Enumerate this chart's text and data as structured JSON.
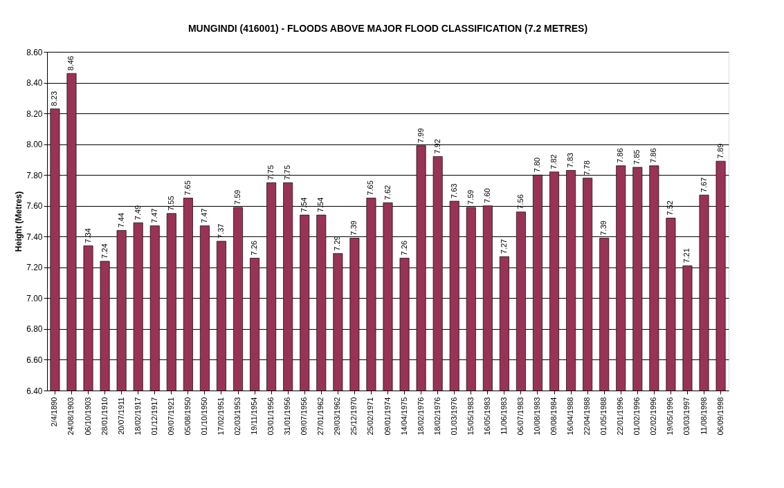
{
  "chart_data": {
    "type": "bar",
    "title": "MUNGINDI (416001) - FLOODS ABOVE MAJOR FLOOD CLASSIFICATION (7.2 METRES)",
    "ylabel": "Height (Metres)",
    "categories": [
      "2/4/1890",
      "24/08/1903",
      "06/10/1903",
      "28/01/1910",
      "20/07/1911",
      "18/02/1917",
      "01/12/1917",
      "09/07/1921",
      "05/08/1950",
      "01/10/1950",
      "17/02/1951",
      "02/03/1953",
      "19/11/1954",
      "03/01/1956",
      "31/01/1956",
      "09/07/1956",
      "27/01/1962",
      "29/03/1962",
      "25/12/1970",
      "25/02/1971",
      "09/01/1974",
      "14/04/1975",
      "18/02/1976",
      "18/02/1976",
      "01/03/1976",
      "15/05/1983",
      "16/05/1983",
      "11/06/1983",
      "06/07/1983",
      "10/08/1983",
      "09/08/1984",
      "16/04/1988",
      "22/04/1988",
      "01/05/1988",
      "22/01/1996",
      "01/02/1996",
      "02/02/1996",
      "19/05/1996",
      "03/03/1997",
      "11/08/1998",
      "06/09/1998"
    ],
    "values": [
      8.23,
      8.46,
      7.34,
      7.24,
      7.44,
      7.49,
      7.47,
      7.55,
      7.65,
      7.47,
      7.37,
      7.59,
      7.26,
      7.75,
      7.75,
      7.54,
      7.54,
      7.29,
      7.39,
      7.65,
      7.62,
      7.26,
      7.99,
      7.92,
      7.63,
      7.59,
      7.6,
      7.27,
      7.56,
      7.8,
      7.82,
      7.83,
      7.78,
      7.39,
      7.86,
      7.85,
      7.86,
      7.52,
      7.21,
      7.67,
      7.89
    ],
    "color": "#993355",
    "ylim": [
      6.4,
      8.6
    ],
    "yticks": [
      {
        "value": 6.4,
        "label": "6.40"
      },
      {
        "value": 6.6,
        "label": "6.60"
      },
      {
        "value": 6.8,
        "label": "6.80"
      },
      {
        "value": 7.0,
        "label": "7.00"
      },
      {
        "value": 7.2,
        "label": "7.20"
      },
      {
        "value": 7.4,
        "label": "7.40"
      },
      {
        "value": 7.6,
        "label": "7.60"
      },
      {
        "value": 7.8,
        "label": "7.80"
      },
      {
        "value": 8.0,
        "label": "8.00"
      },
      {
        "value": 8.2,
        "label": "8.20"
      },
      {
        "value": 8.4,
        "label": "8.40"
      },
      {
        "value": 8.6,
        "label": "8.60"
      }
    ],
    "grid": "y",
    "value_labels": [
      "8.23",
      "8.46",
      "7.34",
      "7.24",
      "7.44",
      "7.49",
      "7.47",
      "7.55",
      "7.65",
      "7.47",
      "7.37",
      "7.59",
      "7.26",
      "7.75",
      "7.75",
      "7.54",
      "7.54",
      "7.29",
      "7.39",
      "7.65",
      "7.62",
      "7.26",
      "7.99",
      "7.92",
      "7.63",
      "7.59",
      "7.60",
      "7.27",
      "7.56",
      "7.80",
      "7.82",
      "7.83",
      "7.78",
      "7.39",
      "7.86",
      "7.85",
      "7.86",
      "7.52",
      "7.21",
      "7.67",
      "7.89"
    ]
  }
}
